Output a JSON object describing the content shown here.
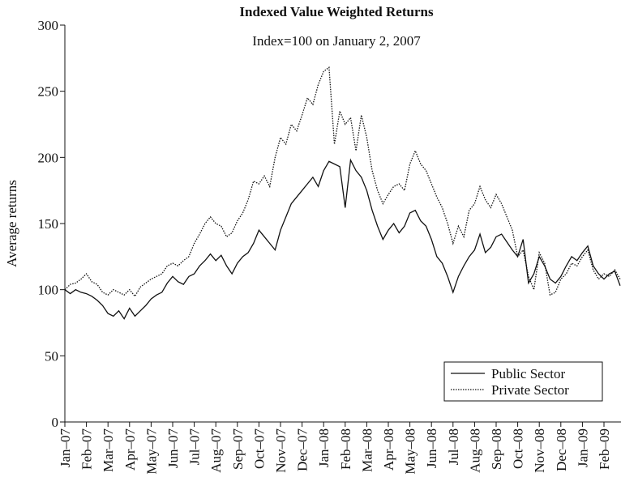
{
  "chart_data": {
    "type": "line",
    "title": "Indexed Value Weighted Returns",
    "subtitle": "Index=100 on January 2, 2007",
    "y_label": "Average returns",
    "categories": [
      "Jan–07",
      null,
      null,
      null,
      "Feb–07",
      null,
      null,
      null,
      "Mar–07",
      null,
      null,
      null,
      "Apr–07",
      null,
      null,
      null,
      "May–07",
      null,
      null,
      null,
      "Jun–07",
      null,
      null,
      null,
      "Jul–07",
      null,
      null,
      null,
      "Aug–07",
      null,
      null,
      null,
      "Sep–07",
      null,
      null,
      null,
      "Oct–07",
      null,
      null,
      null,
      "Nov–07",
      null,
      null,
      null,
      "Dec–07",
      null,
      null,
      null,
      "Jan–08",
      null,
      null,
      null,
      "Feb–08",
      null,
      null,
      null,
      "Mar–08",
      null,
      null,
      null,
      "Apr–08",
      null,
      null,
      null,
      "May–08",
      null,
      null,
      null,
      "Jun–08",
      null,
      null,
      null,
      "Jul–08",
      null,
      null,
      null,
      "Aug–08",
      null,
      null,
      null,
      "Sep–08",
      null,
      null,
      null,
      "Oct–08",
      null,
      null,
      null,
      "Nov–08",
      null,
      null,
      null,
      "Dec–08",
      null,
      null,
      null,
      "Jan–09",
      null,
      null,
      null,
      "Feb–09",
      null,
      null,
      null
    ],
    "series": [
      {
        "name": "Public Sector",
        "color": "#111111",
        "style": "solid",
        "values": [
          100,
          97,
          100,
          98,
          97,
          95,
          92,
          88,
          82,
          80,
          84,
          78,
          86,
          80,
          84,
          88,
          93,
          96,
          98,
          105,
          110,
          106,
          104,
          110,
          112,
          118,
          122,
          127,
          122,
          126,
          118,
          112,
          120,
          125,
          128,
          135,
          145,
          140,
          135,
          130,
          145,
          155,
          165,
          170,
          175,
          180,
          185,
          178,
          190,
          197,
          195,
          193,
          162,
          198,
          190,
          185,
          175,
          160,
          148,
          138,
          145,
          150,
          143,
          148,
          158,
          160,
          152,
          148,
          138,
          125,
          120,
          110,
          98,
          110,
          118,
          125,
          130,
          142,
          128,
          132,
          140,
          142,
          136,
          130,
          125,
          138,
          105,
          112,
          125,
          118,
          108,
          105,
          110,
          118,
          125,
          122,
          128,
          133,
          118,
          112,
          108,
          112,
          114,
          103
        ]
      },
      {
        "name": "Private Sector",
        "color": "#111111",
        "style": "dotted",
        "values": [
          100,
          104,
          105,
          108,
          112,
          106,
          104,
          98,
          96,
          100,
          98,
          96,
          100,
          95,
          102,
          105,
          108,
          110,
          112,
          118,
          120,
          118,
          122,
          125,
          135,
          142,
          150,
          155,
          150,
          148,
          140,
          143,
          152,
          158,
          168,
          182,
          180,
          186,
          178,
          200,
          215,
          210,
          225,
          220,
          232,
          245,
          240,
          255,
          265,
          268,
          210,
          235,
          225,
          230,
          205,
          232,
          215,
          190,
          175,
          165,
          172,
          178,
          180,
          175,
          195,
          205,
          195,
          190,
          180,
          170,
          162,
          150,
          135,
          148,
          140,
          160,
          165,
          178,
          168,
          162,
          172,
          165,
          155,
          145,
          125,
          130,
          110,
          100,
          128,
          120,
          96,
          98,
          108,
          112,
          120,
          118,
          125,
          130,
          115,
          108,
          112,
          110,
          115,
          108
        ]
      }
    ],
    "ylim": [
      0,
      300
    ],
    "yticks": [
      0,
      50,
      100,
      150,
      200,
      250,
      300
    ],
    "legend": "lower right"
  }
}
